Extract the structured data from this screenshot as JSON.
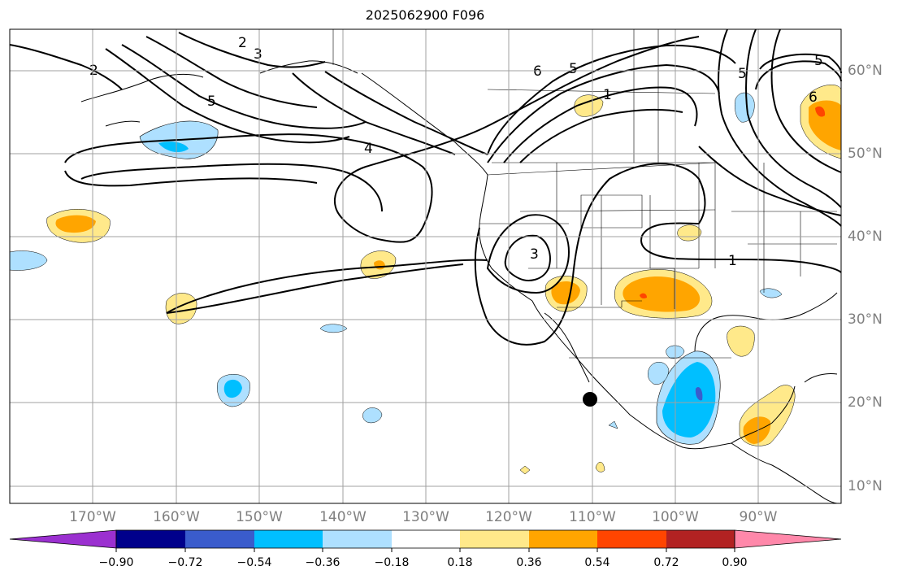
{
  "title": "2025062900 F096",
  "longitude_labels": [
    "170°W",
    "160°W",
    "150°W",
    "140°W",
    "130°W",
    "120°W",
    "110°W",
    "100°W",
    "90°W"
  ],
  "latitude_labels": [
    "60°N",
    "50°N",
    "40°N",
    "30°N",
    "20°N",
    "10°N"
  ],
  "contour_labels": [
    "2",
    "3",
    "4",
    "5",
    "6",
    "1"
  ],
  "colorbar": {
    "ticks": [
      "−0.90",
      "−0.72",
      "−0.54",
      "−0.36",
      "−0.18",
      "0.18",
      "0.36",
      "0.54",
      "0.72",
      "0.90"
    ],
    "colors": [
      "#9b30d0",
      "#00008b",
      "#3a5ccc",
      "#00bfff",
      "#aee0ff",
      "#ffffff",
      "#ffe98a",
      "#ffa500",
      "#ff4500",
      "#b22222",
      "#ff88aa"
    ]
  },
  "marker": {
    "description": "black-dot",
    "lon": "-110",
    "lat": "20"
  }
}
